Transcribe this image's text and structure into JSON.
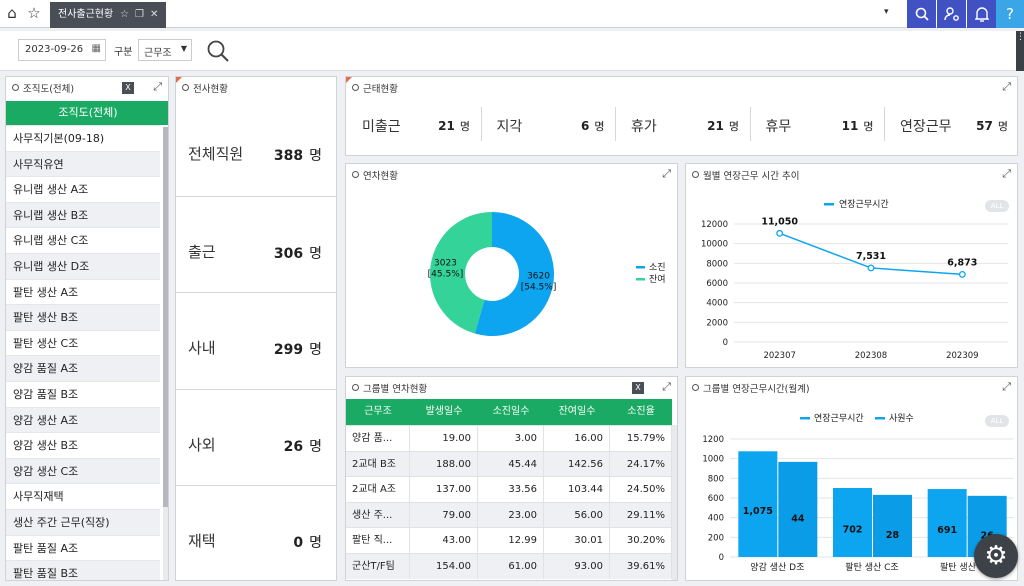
{
  "topbar": {
    "tab_title": "전사출근현황",
    "icons": [
      "home-icon",
      "star-icon",
      "star-outline-icon",
      "window-restore-icon",
      "close-icon",
      "caret-down-icon",
      "search-icon",
      "user-settings-icon",
      "bell-icon",
      "help-icon"
    ]
  },
  "filter": {
    "date": "2023-09-26",
    "category_label": "구분",
    "category_value": "근무조"
  },
  "org": {
    "title": "조직도(전체)",
    "header": "조직도(전체)",
    "items": [
      "사무직기본(09-18)",
      "사무직유연",
      "유니랩 생산 A조",
      "유니랩 생산 B조",
      "유니랩 생산 C조",
      "유니랩 생산 D조",
      "팔탄 생산 A조",
      "팔탄 생산 B조",
      "팔탄 생산 C조",
      "양감 품질 A조",
      "양감 품질 B조",
      "양감 생산 A조",
      "양감 생산 B조",
      "양감 생산 C조",
      "사무직재택",
      "생산 주간 근무(직장)",
      "팔탄 품질 A조",
      "팔탄 품질 B조"
    ]
  },
  "company": {
    "title": "전사현황",
    "rows": [
      {
        "label": "전체직원",
        "value": "388",
        "unit": "명"
      },
      {
        "label": "출근",
        "value": "306",
        "unit": "명"
      },
      {
        "label": "사내",
        "value": "299",
        "unit": "명"
      },
      {
        "label": "사외",
        "value": "26",
        "unit": "명"
      },
      {
        "label": "재택",
        "value": "0",
        "unit": "명"
      }
    ]
  },
  "attendance": {
    "title": "근태현황",
    "stats": [
      {
        "label": "미출근",
        "value": "21",
        "unit": "명"
      },
      {
        "label": "지각",
        "value": "6",
        "unit": "명"
      },
      {
        "label": "휴가",
        "value": "21",
        "unit": "명"
      },
      {
        "label": "휴무",
        "value": "11",
        "unit": "명"
      },
      {
        "label": "연장근무",
        "value": "57",
        "unit": "명"
      }
    ]
  },
  "leave": {
    "title": "연차현황"
  },
  "monthly": {
    "title": "월별 연장근무 시간 추이",
    "all_badge": "ALL"
  },
  "group_leave": {
    "title": "그룹별 연차현황",
    "headers": [
      "근무조",
      "발생일수",
      "소진일수",
      "잔여일수",
      "소진율"
    ],
    "rows": [
      [
        "양감 품...",
        "19.00",
        "3.00",
        "16.00",
        "15.79%"
      ],
      [
        "2교대 B조",
        "188.00",
        "45.44",
        "142.56",
        "24.17%"
      ],
      [
        "2교대 A조",
        "137.00",
        "33.56",
        "103.44",
        "24.50%"
      ],
      [
        "생산 주...",
        "79.00",
        "23.00",
        "56.00",
        "29.11%"
      ],
      [
        "팔탄 직...",
        "43.00",
        "12.99",
        "30.01",
        "30.20%"
      ],
      [
        "군산T/F팀",
        "154.00",
        "61.00",
        "93.00",
        "39.61%"
      ]
    ]
  },
  "group_overtime": {
    "title": "그룹별 연장근무시간(월계)",
    "all_badge": "ALL"
  },
  "colors": {
    "blue": "#0ea5f0",
    "green": "#34d399",
    "accent": "#4051c4",
    "header_green": "#1aaa63"
  },
  "chart_data": [
    {
      "type": "pie",
      "title": "",
      "labels": [
        "소진",
        "잔여"
      ],
      "values": [
        3620,
        3023
      ],
      "percent_labels": [
        "[54.5%]",
        "[45.5%]"
      ],
      "legend_position": "right"
    },
    {
      "type": "line",
      "title": "",
      "x": [
        "202307",
        "202308",
        "202309"
      ],
      "series": [
        {
          "name": "연장근무시간",
          "values": [
            11050,
            7531,
            6873
          ]
        }
      ],
      "data_labels": [
        "11,050",
        "7,531",
        "6,873"
      ],
      "ylim": [
        0,
        12000
      ],
      "yticks": [
        "0",
        "2000",
        "4000",
        "6000",
        "8000",
        "10000",
        "12000"
      ],
      "grid": true,
      "legend_position": "top"
    },
    {
      "type": "bar",
      "title": "",
      "categories": [
        "양감 생산 D조",
        "팔탄 생산 C조",
        "팔탄 생산 B조"
      ],
      "series": [
        {
          "name": "연장근무시간",
          "values": [
            1075,
            702,
            691
          ]
        },
        {
          "name": "사원수",
          "values": [
            44,
            28,
            26
          ]
        }
      ],
      "data_labels": [
        [
          "1,075",
          "702",
          "691"
        ],
        [
          "44",
          "28",
          "26"
        ]
      ],
      "ylim": [
        0,
        1200
      ],
      "yticks": [
        "0",
        "200",
        "400",
        "600",
        "800",
        "1000",
        "1200"
      ],
      "grid": true,
      "legend_position": "top"
    }
  ]
}
